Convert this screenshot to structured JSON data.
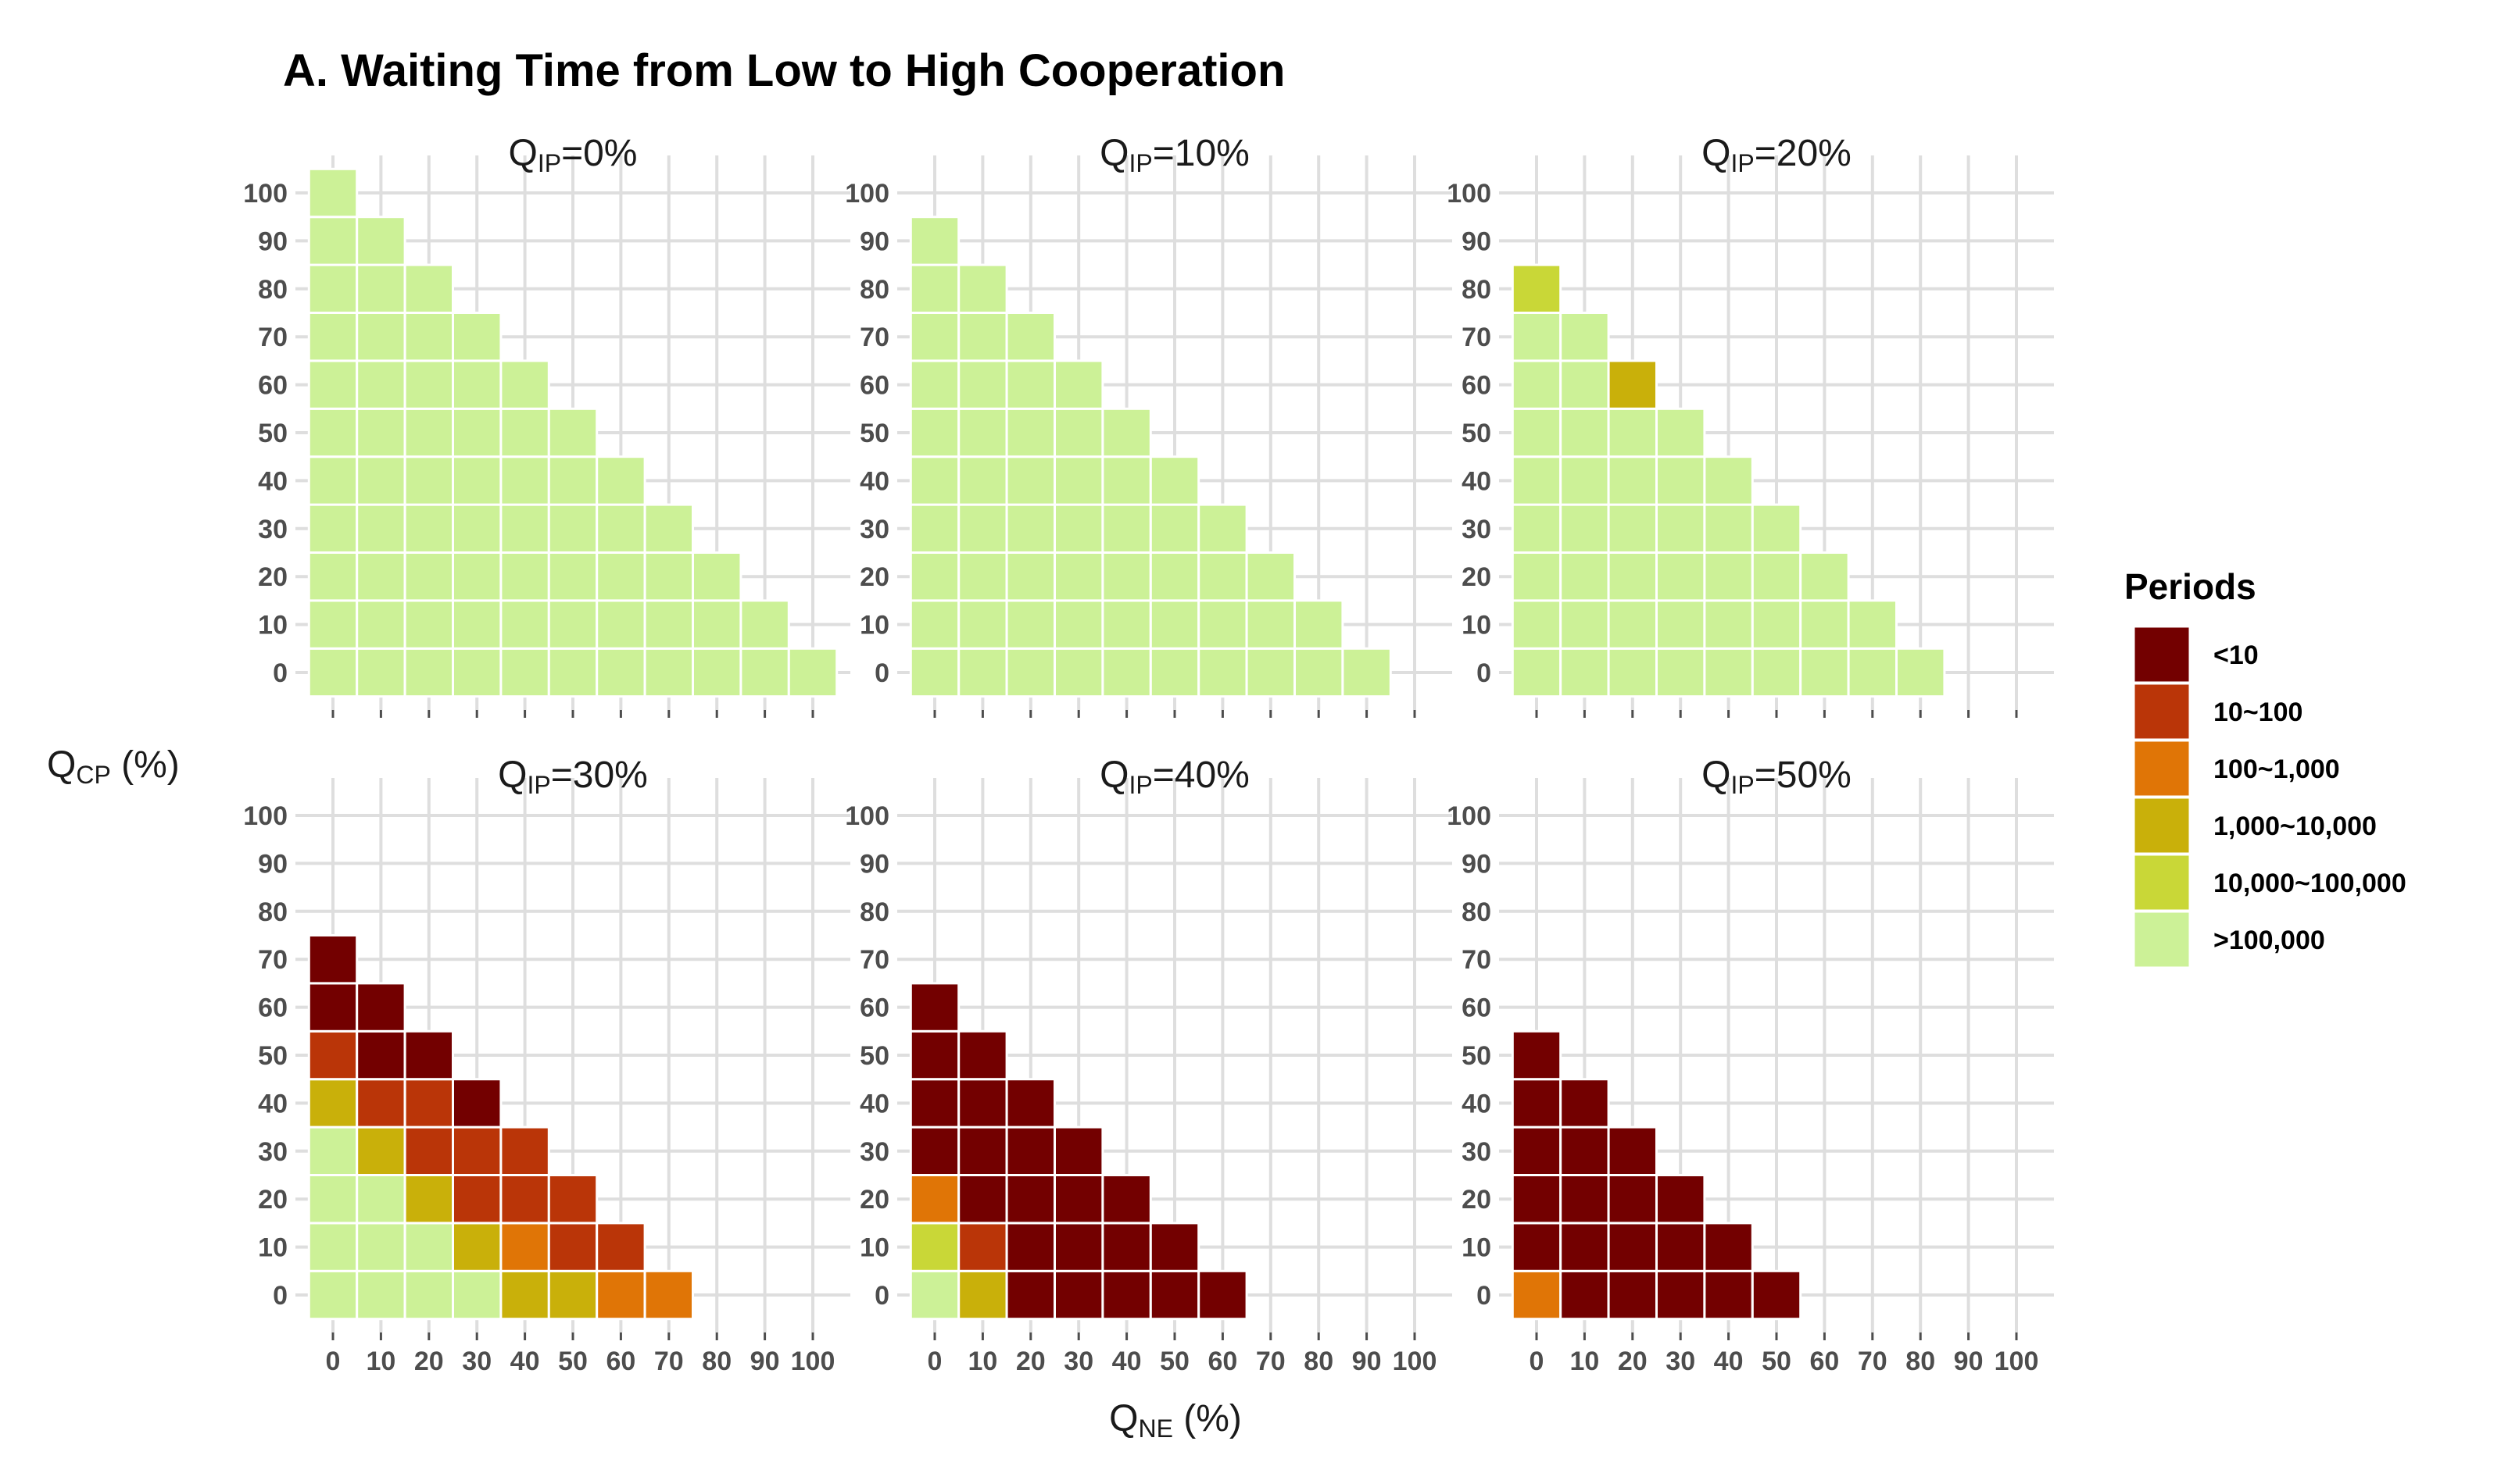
{
  "chart_data": {
    "type": "heatmap",
    "title": "A. Waiting Time from Low to High Cooperation",
    "xlabel": {
      "main": "Q",
      "sub": "NE",
      "unit": " (%)"
    },
    "ylabel": {
      "main": "Q",
      "sub": "CP",
      "unit": " (%)"
    },
    "x_ticks": [
      0,
      10,
      20,
      30,
      40,
      50,
      60,
      70,
      80,
      90,
      100
    ],
    "y_ticks": [
      0,
      10,
      20,
      30,
      40,
      50,
      60,
      70,
      80,
      90,
      100
    ],
    "xlim": [
      0,
      100
    ],
    "ylim": [
      0,
      100
    ],
    "grid": true,
    "legend": {
      "title": "Periods",
      "position": "right",
      "categories": [
        {
          "label": "<10",
          "color": "#730000"
        },
        {
          "label": "10~100",
          "color": "#BA3508"
        },
        {
          "label": "100~1,000",
          "color": "#E07506"
        },
        {
          "label": "1,000~10,000",
          "color": "#C9B00A"
        },
        {
          "label": "10,000~100,000",
          "color": "#C9D737"
        },
        {
          "label": ">100,000",
          "color": "#CCF197"
        }
      ]
    },
    "panels": [
      {
        "label": {
          "main": "Q",
          "sub": "IP",
          "value": "=0%"
        },
        "cells": [
          [
            "F",
            "F",
            "F",
            "F",
            "F",
            "F",
            "F",
            "F",
            "F",
            "F",
            "F"
          ],
          [
            "F",
            "F",
            "F",
            "F",
            "F",
            "F",
            "F",
            "F",
            "F",
            "F"
          ],
          [
            "F",
            "F",
            "F",
            "F",
            "F",
            "F",
            "F",
            "F",
            "F"
          ],
          [
            "F",
            "F",
            "F",
            "F",
            "F",
            "F",
            "F",
            "F"
          ],
          [
            "F",
            "F",
            "F",
            "F",
            "F",
            "F",
            "F"
          ],
          [
            "F",
            "F",
            "F",
            "F",
            "F",
            "F"
          ],
          [
            "F",
            "F",
            "F",
            "F",
            "F"
          ],
          [
            "F",
            "F",
            "F",
            "F"
          ],
          [
            "F",
            "F",
            "F"
          ],
          [
            "F",
            "F"
          ],
          [
            "F"
          ]
        ]
      },
      {
        "label": {
          "main": "Q",
          "sub": "IP",
          "value": "=10%"
        },
        "cells": [
          [
            "F",
            "F",
            "F",
            "F",
            "F",
            "F",
            "F",
            "F",
            "F",
            "F"
          ],
          [
            "F",
            "F",
            "F",
            "F",
            "F",
            "F",
            "F",
            "F",
            "F"
          ],
          [
            "F",
            "F",
            "F",
            "F",
            "F",
            "F",
            "F",
            "F"
          ],
          [
            "F",
            "F",
            "F",
            "F",
            "F",
            "F",
            "F"
          ],
          [
            "F",
            "F",
            "F",
            "F",
            "F",
            "F"
          ],
          [
            "F",
            "F",
            "F",
            "F",
            "F"
          ],
          [
            "F",
            "F",
            "F",
            "F"
          ],
          [
            "F",
            "F",
            "F"
          ],
          [
            "F",
            "F"
          ],
          [
            "F"
          ]
        ]
      },
      {
        "label": {
          "main": "Q",
          "sub": "IP",
          "value": "=20%"
        },
        "cells": [
          [
            "F",
            "F",
            "F",
            "F",
            "F",
            "F",
            "F",
            "F",
            "F"
          ],
          [
            "F",
            "F",
            "F",
            "F",
            "F",
            "F",
            "F",
            "F"
          ],
          [
            "F",
            "F",
            "F",
            "F",
            "F",
            "F",
            "F"
          ],
          [
            "F",
            "F",
            "F",
            "F",
            "F",
            "F"
          ],
          [
            "F",
            "F",
            "F",
            "F",
            "F"
          ],
          [
            "F",
            "F",
            "F",
            "F"
          ],
          [
            "F",
            "F",
            "D"
          ],
          [
            "F",
            "F"
          ],
          [
            "E"
          ]
        ]
      },
      {
        "label": {
          "main": "Q",
          "sub": "IP",
          "value": "=30%"
        },
        "cells": [
          [
            "F",
            "F",
            "F",
            "F",
            "D",
            "D",
            "C",
            "C"
          ],
          [
            "F",
            "F",
            "F",
            "D",
            "C",
            "B",
            "B"
          ],
          [
            "F",
            "F",
            "D",
            "B",
            "B",
            "B"
          ],
          [
            "F",
            "D",
            "B",
            "B",
            "B"
          ],
          [
            "D",
            "B",
            "B",
            "A"
          ],
          [
            "B",
            "A",
            "A"
          ],
          [
            "A",
            "A"
          ],
          [
            "A"
          ]
        ]
      },
      {
        "label": {
          "main": "Q",
          "sub": "IP",
          "value": "=40%"
        },
        "cells": [
          [
            "F",
            "D",
            "A",
            "A",
            "A",
            "A",
            "A"
          ],
          [
            "E",
            "B",
            "A",
            "A",
            "A",
            "A"
          ],
          [
            "C",
            "A",
            "A",
            "A",
            "A"
          ],
          [
            "A",
            "A",
            "A",
            "A"
          ],
          [
            "A",
            "A",
            "A"
          ],
          [
            "A",
            "A"
          ],
          [
            "A"
          ]
        ]
      },
      {
        "label": {
          "main": "Q",
          "sub": "IP",
          "value": "=50%"
        },
        "cells": [
          [
            "C",
            "A",
            "A",
            "A",
            "A",
            "A"
          ],
          [
            "A",
            "A",
            "A",
            "A",
            "A"
          ],
          [
            "A",
            "A",
            "A",
            "A"
          ],
          [
            "A",
            "A",
            "A"
          ],
          [
            "A",
            "A"
          ],
          [
            "A"
          ]
        ]
      }
    ]
  }
}
